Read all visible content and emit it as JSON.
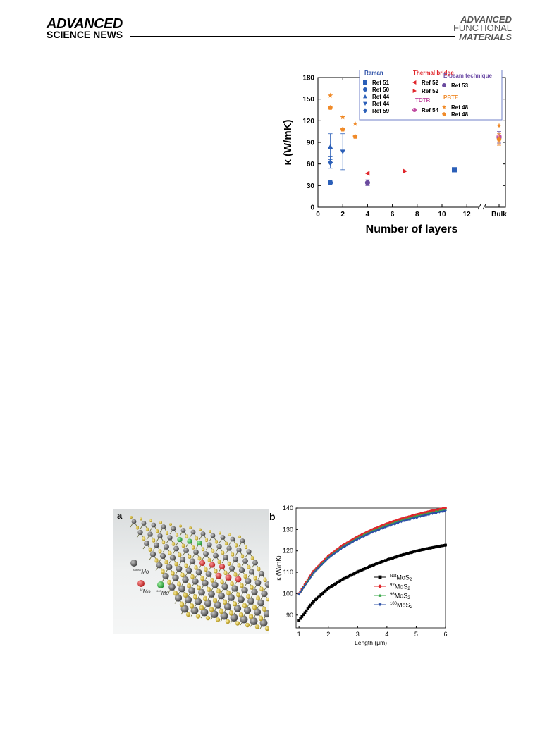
{
  "header": {
    "brand_left_top": "ADVANCED",
    "brand_left_bottom": "SCIENCE NEWS",
    "brand_right_line1": "ADVANCED",
    "brand_right_line2": "FUNCTIONAL",
    "brand_right_line3": "MATERIALS"
  },
  "figure1": {
    "chart_data": {
      "type": "scatter",
      "xlabel": "Number of layers",
      "ylabel": "κ (W/mK)",
      "x_ticks": [
        "0",
        "2",
        "4",
        "6",
        "8",
        "10",
        "12",
        "Bulk"
      ],
      "y_ticks": [
        "0",
        "30",
        "60",
        "90",
        "120",
        "150",
        "180"
      ],
      "xlim": [
        0,
        15
      ],
      "ylim": [
        0,
        180
      ],
      "legend_groups": [
        {
          "title": "Raman",
          "color": "#2b4fa6"
        },
        {
          "title": "Thermal bridge",
          "color": "#e0262b"
        },
        {
          "title": "E-beam technique",
          "color": "#7050a8"
        },
        {
          "title": "TDTR",
          "color": "#c04aa0"
        },
        {
          "title": "PBTE",
          "color": "#f08a28"
        }
      ],
      "series": [
        {
          "name": "Ref 51",
          "group": "Raman",
          "marker": "square",
          "color": "#2b5fb8",
          "points": [
            [
              11,
              52
            ]
          ]
        },
        {
          "name": "Ref 50",
          "group": "Raman",
          "marker": "circle",
          "color": "#2b5fb8",
          "points": [
            [
              1,
              34
            ]
          ],
          "err": [
            3
          ]
        },
        {
          "name": "Ref 44",
          "group": "Raman",
          "marker": "triangle-up",
          "color": "#2b5fb8",
          "points": [
            [
              1,
              84
            ]
          ],
          "err": [
            18
          ]
        },
        {
          "name": "Ref 44",
          "group": "Raman",
          "marker": "triangle-down",
          "color": "#2b5fb8",
          "points": [
            [
              2,
              77
            ]
          ],
          "err": [
            25
          ]
        },
        {
          "name": "Ref 59",
          "group": "Raman",
          "marker": "diamond",
          "color": "#2b5fb8",
          "points": [
            [
              1,
              62
            ]
          ],
          "err": [
            8
          ]
        },
        {
          "name": "Ref 52",
          "group": "Thermal bridge",
          "marker": "triangle-left",
          "color": "#e0262b",
          "points": [
            [
              4,
              47
            ]
          ]
        },
        {
          "name": "Ref 52",
          "group": "Thermal bridge",
          "marker": "triangle-right",
          "color": "#e0262b",
          "points": [
            [
              7,
              50
            ]
          ]
        },
        {
          "name": "Ref 53",
          "group": "E-beam technique",
          "marker": "circle",
          "color": "#6a4a9e",
          "points": [
            [
              4,
              34
            ],
            [
              14,
              97
            ]
          ],
          "err": [
            4,
            8
          ]
        },
        {
          "name": "Ref 54",
          "group": "TDTR",
          "marker": "sphere",
          "color": "#c04aa0",
          "points": [
            [
              14,
              98
            ]
          ]
        },
        {
          "name": "Ref 48",
          "group": "PBTE",
          "marker": "star",
          "color": "#f08a28",
          "points": [
            [
              1,
              155
            ],
            [
              2,
              125
            ],
            [
              3,
              116
            ],
            [
              14,
              113
            ]
          ]
        },
        {
          "name": "Ref 48",
          "group": "PBTE",
          "marker": "pentagon",
          "color": "#f08a28",
          "points": [
            [
              1,
              138
            ],
            [
              2,
              108
            ],
            [
              3,
              98
            ],
            [
              14,
              94
            ]
          ],
          "err": [
            0,
            0,
            0,
            8
          ]
        }
      ]
    }
  },
  "figure2": {
    "panel_a": {
      "label": "a",
      "isotope_labels": [
        {
          "mass": "natural",
          "symbol": "Mo"
        },
        {
          "mass": "92",
          "symbol": "Mo"
        },
        {
          "mass": "100",
          "symbol": "Mo"
        }
      ]
    },
    "panel_b": {
      "label": "b",
      "chart_data": {
        "type": "line",
        "xlabel": "Length (μm)",
        "ylabel": "κ (W/mK)",
        "xlim": [
          0.9,
          6
        ],
        "ylim": [
          84,
          140
        ],
        "x_ticks": [
          "1",
          "2",
          "3",
          "4",
          "5",
          "6"
        ],
        "y_ticks": [
          "90",
          "100",
          "110",
          "120",
          "130",
          "140"
        ],
        "x": [
          1.0,
          1.5,
          2.0,
          2.5,
          3.0,
          3.5,
          4.0,
          4.5,
          5.0,
          5.5,
          6.0
        ],
        "series": [
          {
            "sup": "Nat",
            "base": "MoS",
            "sub": "2",
            "marker": "square",
            "color": "#000000",
            "values": [
              87.5,
              96.5,
              102.5,
              106.8,
              110.2,
              113.2,
              115.8,
              118.0,
              119.9,
              121.4,
              122.7
            ]
          },
          {
            "sup": "92",
            "base": "MoS",
            "sub": "2",
            "marker": "circle",
            "color": "#e0262b",
            "values": [
              100.0,
              110.5,
              117.5,
              122.6,
              126.6,
              129.9,
              132.7,
              135.0,
              136.9,
              138.6,
              140.0
            ]
          },
          {
            "sup": "96",
            "base": "MoS",
            "sub": "2",
            "marker": "triangle-up",
            "color": "#3aa84a",
            "values": [
              99.8,
              110.0,
              117.0,
              122.0,
              126.0,
              129.3,
              132.0,
              134.3,
              136.2,
              137.9,
              139.3
            ]
          },
          {
            "sup": "100",
            "base": "MoS",
            "sub": "2",
            "marker": "triangle-down",
            "color": "#2b4fa6",
            "values": [
              99.6,
              109.6,
              116.5,
              121.5,
              125.4,
              128.6,
              131.3,
              133.6,
              135.5,
              137.2,
              138.6
            ]
          }
        ]
      }
    }
  }
}
